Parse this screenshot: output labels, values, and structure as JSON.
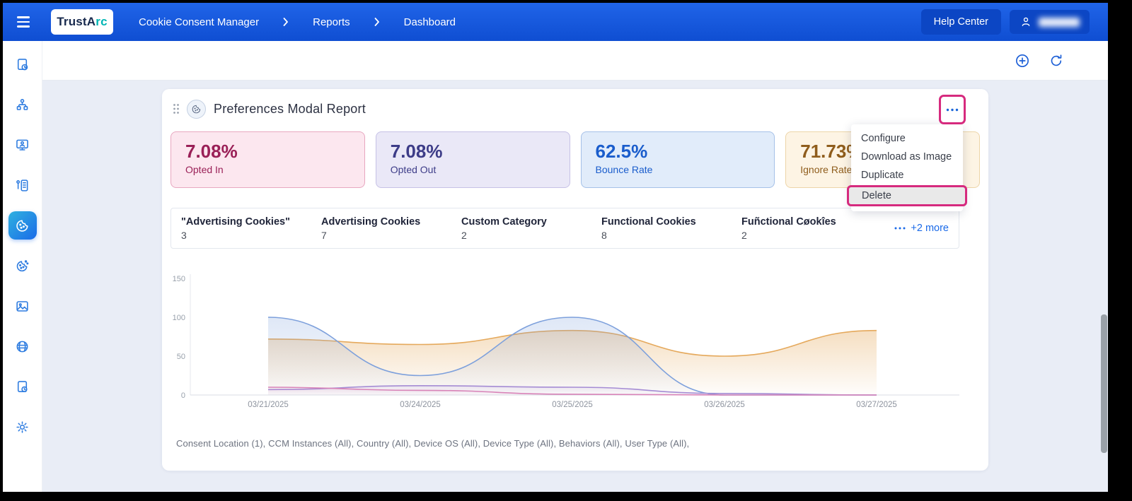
{
  "colors": {
    "header_blue": "#1557DD",
    "accent_blue": "#1B66D9",
    "annotation_pink": "#D62A7E",
    "active_nav_gradient": [
      "#2FB1E0",
      "#1B6BE8"
    ]
  },
  "header": {
    "logo": {
      "primary": "TrustA",
      "accent": "rc"
    },
    "breadcrumb": [
      "Cookie Consent Manager",
      "Reports",
      "Dashboard"
    ],
    "help_center_label": "Help Center"
  },
  "toolbar": {
    "icons": [
      "add-circle",
      "refresh"
    ]
  },
  "sidebar": {
    "icons": [
      "report-history",
      "hierarchy",
      "screen-monitor",
      "form-list",
      "cookie-consent",
      "cookie",
      "image-gallery",
      "globe",
      "document-history",
      "settings-gear"
    ],
    "active_icon": "cookie-consent"
  },
  "report": {
    "title": "Preferences Modal Report",
    "stats": [
      {
        "value": "7.08%",
        "label": "Opted In",
        "color": "#9A2057",
        "bg": "#FCE7EF",
        "border": "#E8A7C0"
      },
      {
        "value": "7.08%",
        "label": "Opted Out",
        "color": "#3D3C88",
        "bg": "#EAE8F7",
        "border": "#C6C1E6"
      },
      {
        "value": "62.5%",
        "label": "Bounce Rate",
        "color": "#1A5DCC",
        "bg": "#E1ECFA",
        "border": "#A5C1E8"
      },
      {
        "value": "71.73%",
        "label": "Ignore Rate",
        "color": "#8F5D1C",
        "bg": "#FDF4E4",
        "border": "#EDD5A8"
      }
    ],
    "menu": {
      "items": [
        "Configure",
        "Download as Image",
        "Duplicate",
        "Delete"
      ],
      "highlighted_item": "Delete"
    },
    "categories": [
      {
        "name": "\"Advertising Cookies\"",
        "value": "3"
      },
      {
        "name": "Advertising Cookies",
        "value": "7"
      },
      {
        "name": "Custom Category",
        "value": "2"
      },
      {
        "name": "Functional Cookies",
        "value": "8"
      },
      {
        "name": "Fuñctional Cøokîes",
        "value": "2"
      }
    ],
    "more_label": "+2 more",
    "filters_text": "Consent Location (1), CCM Instances (All), Country (All), Device OS (All), Device Type (All), Behaviors (All), User Type (All),"
  },
  "chart_data": {
    "type": "area",
    "x": [
      "03/21/2025",
      "03/24/2025",
      "03/25/2025",
      "03/26/2025",
      "03/27/2025"
    ],
    "series": [
      {
        "name": "orange-series",
        "color": "#E5A95C",
        "fill_opacity": 0.38,
        "values": [
          72,
          65,
          83,
          50,
          83
        ]
      },
      {
        "name": "blue-series",
        "color": "#7DA0DC",
        "fill_opacity": 0.25,
        "values": [
          100,
          25,
          100,
          0,
          0
        ]
      },
      {
        "name": "purple-series",
        "color": "#A58CD4",
        "fill_opacity": 0.15,
        "values": [
          7,
          12,
          10,
          2,
          0
        ]
      },
      {
        "name": "pink-series",
        "color": "#D883B8",
        "fill_opacity": 0.12,
        "values": [
          10,
          6,
          1,
          0,
          0
        ]
      }
    ],
    "title": "",
    "xlabel": "",
    "ylabel": "",
    "ylim": [
      0,
      150
    ],
    "yticks": [
      0,
      50,
      100,
      150
    ],
    "legend": "none",
    "grid": false
  },
  "annotations": {
    "highlight_color": "#D62A7E",
    "highlighted_elements": [
      "report-menu-button",
      "menu-item-delete"
    ]
  }
}
